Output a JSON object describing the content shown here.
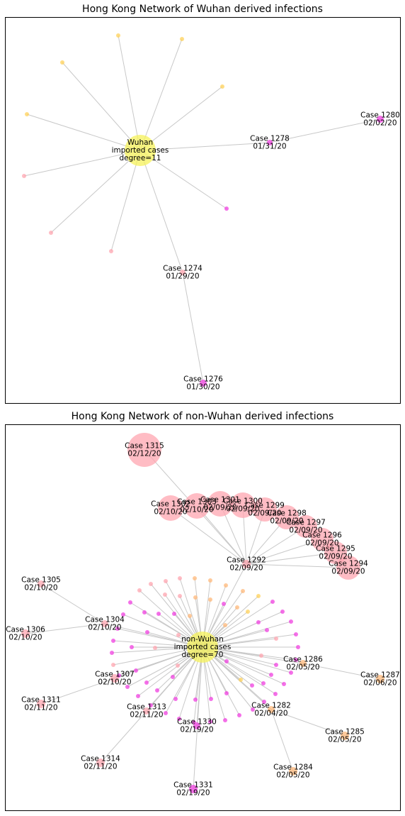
{
  "colors": {
    "yellow": "#f5f25a",
    "pink": "#ffa6b0",
    "magenta": "#f040e0",
    "orange": "#ffb87a",
    "gold": "#ffd25a",
    "edge": "#c8c8c8"
  },
  "panels": [
    {
      "title": "Hong Kong Network of Wuhan derived infections",
      "labels": [
        {
          "text": [
            "Wuhan",
            "imported cases",
            "degree=11"
          ]
        },
        {
          "text": [
            "Case 1278",
            "01/31/20"
          ]
        },
        {
          "text": [
            "Case 1280",
            "02/02/20"
          ]
        },
        {
          "text": [
            "Case 1274",
            "01/29/20"
          ]
        },
        {
          "text": [
            "Case 1276",
            "01/30/20"
          ]
        }
      ]
    },
    {
      "title": "Hong Kong Network of non-Wuhan derived infections",
      "labels": [
        {
          "text": [
            "non-Wuhan",
            "imported cases",
            "degree=70"
          ]
        },
        {
          "text": [
            "Case 1315",
            "02/12/20"
          ]
        },
        {
          "text": [
            "Case 1302",
            "02/10/20"
          ]
        },
        {
          "text": [
            "Case 1303",
            "02/10/20"
          ]
        },
        {
          "text": [
            "Case 1301",
            "02/09/20"
          ]
        },
        {
          "text": [
            "Case 1300",
            "02/09/20"
          ]
        },
        {
          "text": [
            "Case 1299",
            "02/09/20"
          ]
        },
        {
          "text": [
            "Case 1298",
            "02/09/20"
          ]
        },
        {
          "text": [
            "Case 1297",
            "02/09/20"
          ]
        },
        {
          "text": [
            "Case 1296",
            "02/09/20"
          ]
        },
        {
          "text": [
            "Case 1295",
            "02/09/20"
          ]
        },
        {
          "text": [
            "Case 1294",
            "02/09/20"
          ]
        },
        {
          "text": [
            "Case 1292",
            "02/09/20"
          ]
        },
        {
          "text": [
            "Case 1305",
            "02/10/20"
          ]
        },
        {
          "text": [
            "Case 1304",
            "02/10/20"
          ]
        },
        {
          "text": [
            "Case 1306",
            "02/10/20"
          ]
        },
        {
          "text": [
            "Case 1307",
            "02/10/20"
          ]
        },
        {
          "text": [
            "Case 1311",
            "02/11/20"
          ]
        },
        {
          "text": [
            "Case 1313",
            "02/11/20"
          ]
        },
        {
          "text": [
            "Case 1330",
            "02/19/20"
          ]
        },
        {
          "text": [
            "Case 1314",
            "02/11/20"
          ]
        },
        {
          "text": [
            "Case 1331",
            "02/19/20"
          ]
        },
        {
          "text": [
            "Case 1286",
            "02/05/20"
          ]
        },
        {
          "text": [
            "Case 1287",
            "02/06/20"
          ]
        },
        {
          "text": [
            "Case 1282",
            "02/04/20"
          ]
        },
        {
          "text": [
            "Case 1285",
            "02/05/20"
          ]
        },
        {
          "text": [
            "Case 1284",
            "02/05/20"
          ]
        }
      ]
    }
  ]
}
